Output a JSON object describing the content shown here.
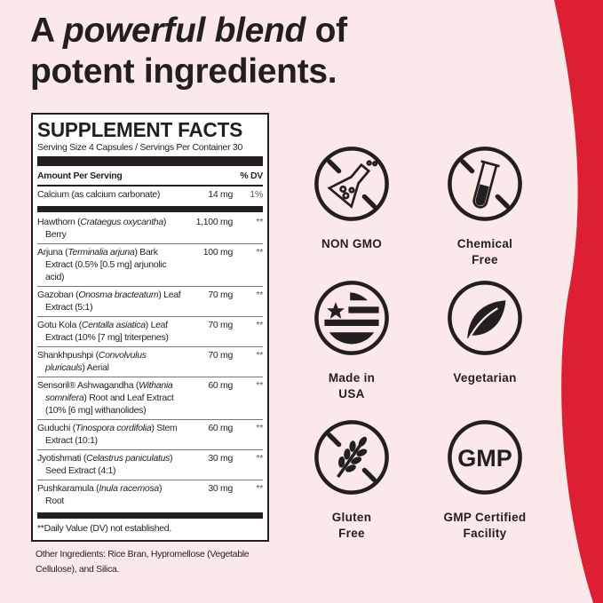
{
  "headline": {
    "pre": "A ",
    "emph": "powerful blend",
    "post": " of",
    "line2": "potent ingredients."
  },
  "facts": {
    "title": "SUPPLEMENT FACTS",
    "serving": "Serving Size 4 Capsules / Servings Per Container 30",
    "header": {
      "name": "Amount Per Serving",
      "amount": "",
      "dv": "% DV"
    },
    "calcium": {
      "name": "Calcium (as calcium carbonate)",
      "amount": "14 mg",
      "dv": "1%"
    },
    "rows": [
      {
        "a": "Hawthorn (",
        "i": "Crataegus oxycantha",
        "b": ") Berry",
        "amount": "1,100 mg",
        "dv": "**"
      },
      {
        "a": "Arjuna (",
        "i": "Terminalia arjuna",
        "b": ") Bark Extract (0.5% [0.5 mg] arjunolic acid)",
        "amount": "100 mg",
        "dv": "**"
      },
      {
        "a": "Gazoban (",
        "i": "Onosma bracteatum",
        "b": ") Leaf Extract (5:1)",
        "amount": "70 mg",
        "dv": "**"
      },
      {
        "a": "Gotu Kola (",
        "i": "Centalla asiatica",
        "b": ") Leaf Extract (10% [7 mg] triterpenes)",
        "amount": "70 mg",
        "dv": "**"
      },
      {
        "a": "Shankhpushpi (",
        "i": "Convolvulus pluricauls",
        "b": ") Aerial",
        "amount": "70 mg",
        "dv": "**"
      },
      {
        "a": "Sensoril® Ashwagandha (",
        "i": "Withania somnifera",
        "b": ") Root and Leaf Extract (10% [6 mg] withanolides)",
        "amount": "60 mg",
        "dv": "**"
      },
      {
        "a": "Guduchi (",
        "i": "Tinospora cordifolia",
        "b": ") Stem Extract (10:1)",
        "amount": "60 mg",
        "dv": "**"
      },
      {
        "a": "Jyotishmati (",
        "i": "Celastrus paniculatus",
        "b": ") Seed Extract (4:1)",
        "amount": "30 mg",
        "dv": "**"
      },
      {
        "a": "Pushkaramula (",
        "i": "Inula racemosa",
        "b": ") Root",
        "amount": "30 mg",
        "dv": "**"
      }
    ],
    "footnote": "**Daily Value (DV) not established."
  },
  "other_ingredients": "Other Ingredients: Rice Bran, Hypromellose (Vegetable Cellulose), and Silica.",
  "badges": [
    {
      "icon": "no-flask-icon",
      "l1": "NON GMO",
      "l2": ""
    },
    {
      "icon": "no-test-tube-icon",
      "l1": "Chemical",
      "l2": "Free"
    },
    {
      "icon": "usa-flag-icon",
      "l1": "Made in",
      "l2": "USA"
    },
    {
      "icon": "leaf-icon",
      "l1": "Vegetarian",
      "l2": ""
    },
    {
      "icon": "no-wheat-icon",
      "l1": "Gluten",
      "l2": "Free"
    },
    {
      "icon": "gmp-icon",
      "l1": "GMP Certified",
      "l2": "Facility",
      "badge_text": "GMP"
    }
  ],
  "colors": {
    "background": "#fbe8e9",
    "accent_red": "#dc1f33",
    "ink": "#231f20"
  }
}
